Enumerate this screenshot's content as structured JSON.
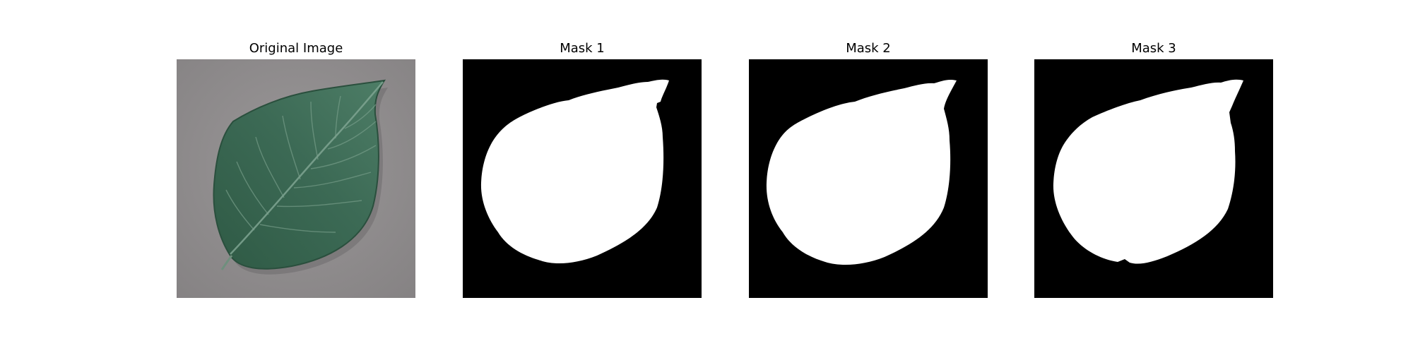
{
  "figure": {
    "panels": [
      {
        "title": "Original Image",
        "kind": "photo",
        "subject": "green leaf on gray surface"
      },
      {
        "title": "Mask 1",
        "kind": "binary-mask"
      },
      {
        "title": "Mask 2",
        "kind": "binary-mask"
      },
      {
        "title": "Mask 3",
        "kind": "binary-mask"
      }
    ],
    "colors": {
      "background": "#ffffff",
      "mask_foreground": "#ffffff",
      "mask_background": "#000000",
      "photo_backdrop": "#8f8c8d",
      "leaf_dark": "#2f5a45",
      "leaf_light": "#5f8a73"
    }
  }
}
